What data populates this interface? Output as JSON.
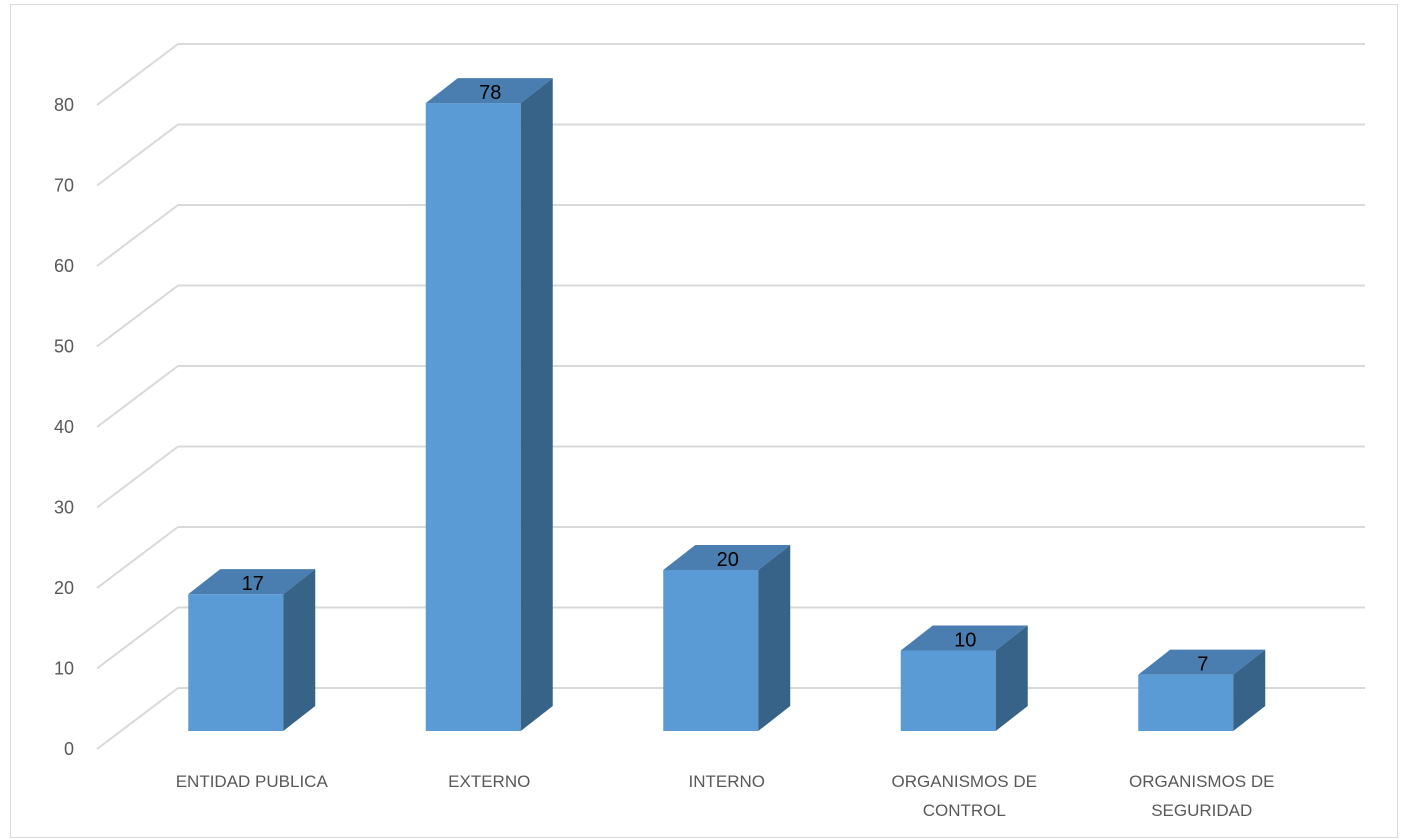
{
  "chart_data": {
    "type": "bar",
    "style": "3d-column",
    "categories": [
      [
        "ENTIDAD PUBLICA"
      ],
      [
        "EXTERNO"
      ],
      [
        "INTERNO"
      ],
      [
        "ORGANISMOS DE",
        "CONTROL"
      ],
      [
        "ORGANISMOS DE",
        "SEGURIDAD"
      ]
    ],
    "values": [
      17,
      78,
      20,
      10,
      7
    ],
    "data_labels": [
      "17",
      "78",
      "20",
      "10",
      "7"
    ],
    "ylim": [
      0,
      80
    ],
    "y_ticks": [
      "0",
      "10",
      "20",
      "30",
      "40",
      "50",
      "60",
      "70",
      "80"
    ],
    "grid": true,
    "legend": "none",
    "colors": {
      "bar_front": "#5b9bd5",
      "bar_top": "#4a7eb0",
      "bar_side": "#386389",
      "gridline": "#d9d9d9",
      "axis_text": "#595959",
      "label_text": "#000000"
    }
  }
}
